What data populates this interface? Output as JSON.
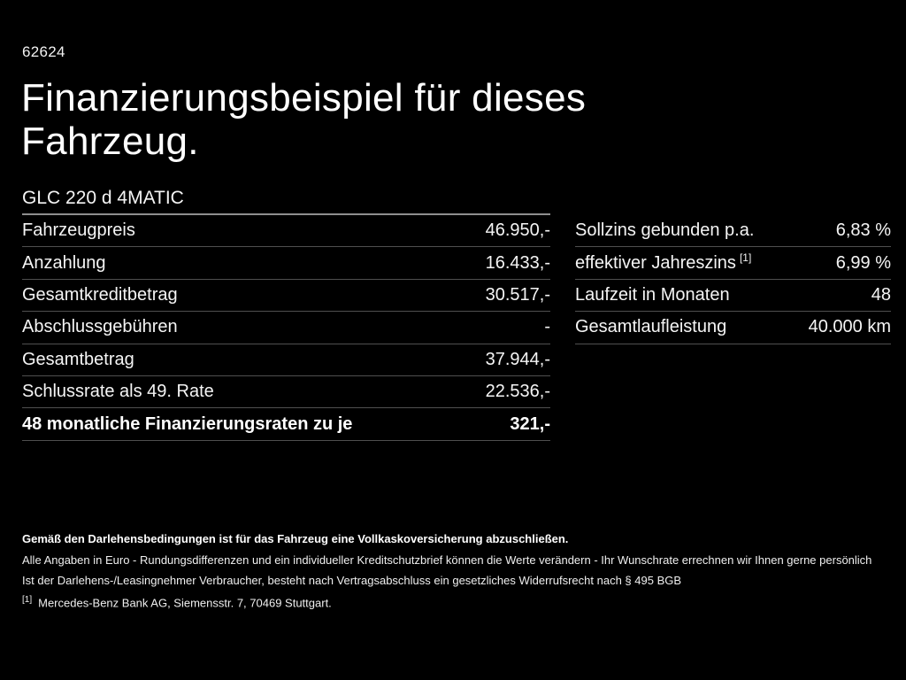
{
  "page": {
    "code": "62624",
    "title_line1": "Finanzierungsbeispiel für dieses",
    "title_line2": "Fahrzeug.",
    "model": "GLC 220 d 4MATIC"
  },
  "colors": {
    "background": "#000000",
    "text": "#ffffff",
    "divider": "#4f4f4f",
    "divider_strong": "#8e8e8e"
  },
  "finance_table": {
    "rows": [
      {
        "label": "Fahrzeugpreis",
        "value": "46.950,-"
      },
      {
        "label": "Anzahlung",
        "value": "16.433,-"
      },
      {
        "label": "Gesamtkreditbetrag",
        "value": "30.517,-"
      },
      {
        "label": "Abschlussgebühren",
        "value": "-"
      },
      {
        "label": "Gesamtbetrag",
        "value": "37.944,-"
      },
      {
        "label": "Schlussrate als 49. Rate",
        "value": "22.536,-"
      },
      {
        "label": "48 monatliche Finanzierungsraten zu je",
        "value": "321,-"
      }
    ]
  },
  "conditions_table": {
    "rows": [
      {
        "label": "Sollzins gebunden p.a.",
        "sup": "",
        "value": "6,83 %"
      },
      {
        "label": "effektiver Jahreszins",
        "sup": "[1]",
        "value": "6,99 %"
      },
      {
        "label": "Laufzeit in Monaten",
        "sup": "",
        "value": "48"
      },
      {
        "label": "Gesamtlaufleistung",
        "sup": "",
        "value": "40.000 km"
      }
    ]
  },
  "footer": {
    "note_bold": "Gemäß den Darlehensbedingungen ist für das Fahrzeug eine Vollkaskoversicherung abzuschließen.",
    "note_line2": "Alle Angaben in Euro - Rundungsdifferenzen und ein individueller Kreditschutzbrief können die Werte verändern - Ihr Wunschrate errechnen wir Ihnen gerne persönlich",
    "note_line3": "Ist der Darlehens-/Leasingnehmer Verbraucher, besteht nach Vertragsabschluss ein gesetzliches Widerrufsrecht nach § 495 BGB",
    "footnote_marker": "[1]",
    "footnote_text": "Mercedes-Benz Bank AG, Siemensstr. 7, 70469 Stuttgart."
  }
}
